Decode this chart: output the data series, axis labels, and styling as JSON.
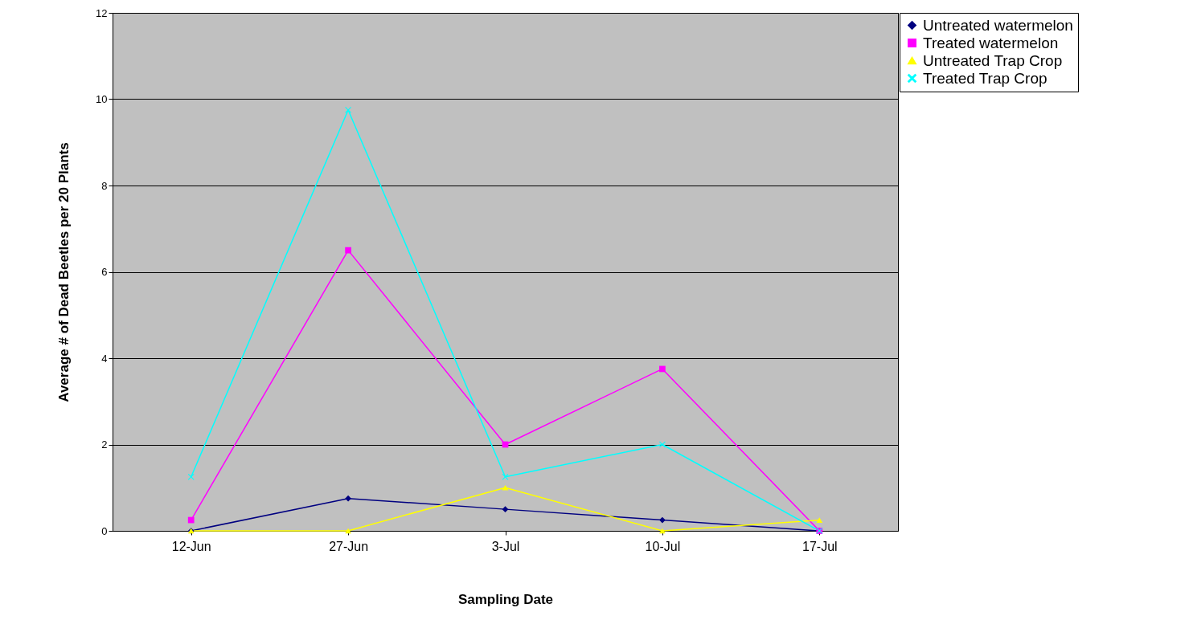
{
  "chart_data": {
    "type": "line",
    "xlabel": "Sampling  Date",
    "ylabel": "Average # of Dead Beetles per 20 Plants",
    "categories": [
      "12-Jun",
      "27-Jun",
      "3-Jul",
      "10-Jul",
      "17-Jul"
    ],
    "series": [
      {
        "name": "Untreated watermelon",
        "color": "#000080",
        "marker": "diamond",
        "values": [
          0,
          0.75,
          0.5,
          0.25,
          0
        ]
      },
      {
        "name": "Treated watermelon",
        "color": "#ff00ff",
        "marker": "square",
        "values": [
          0.25,
          6.5,
          2,
          3.75,
          0
        ]
      },
      {
        "name": "Untreated Trap Crop",
        "color": "#ffff00",
        "marker": "triangle",
        "values": [
          0,
          0,
          1,
          0,
          0.25
        ]
      },
      {
        "name": "Treated Trap Crop",
        "color": "#00ffff",
        "marker": "cross",
        "values": [
          1.25,
          9.75,
          1.25,
          2,
          0
        ]
      }
    ],
    "ylim": [
      0,
      12
    ],
    "yticks": [
      0,
      2,
      4,
      6,
      8,
      10,
      12
    ],
    "grid": "y",
    "legend": "right"
  }
}
